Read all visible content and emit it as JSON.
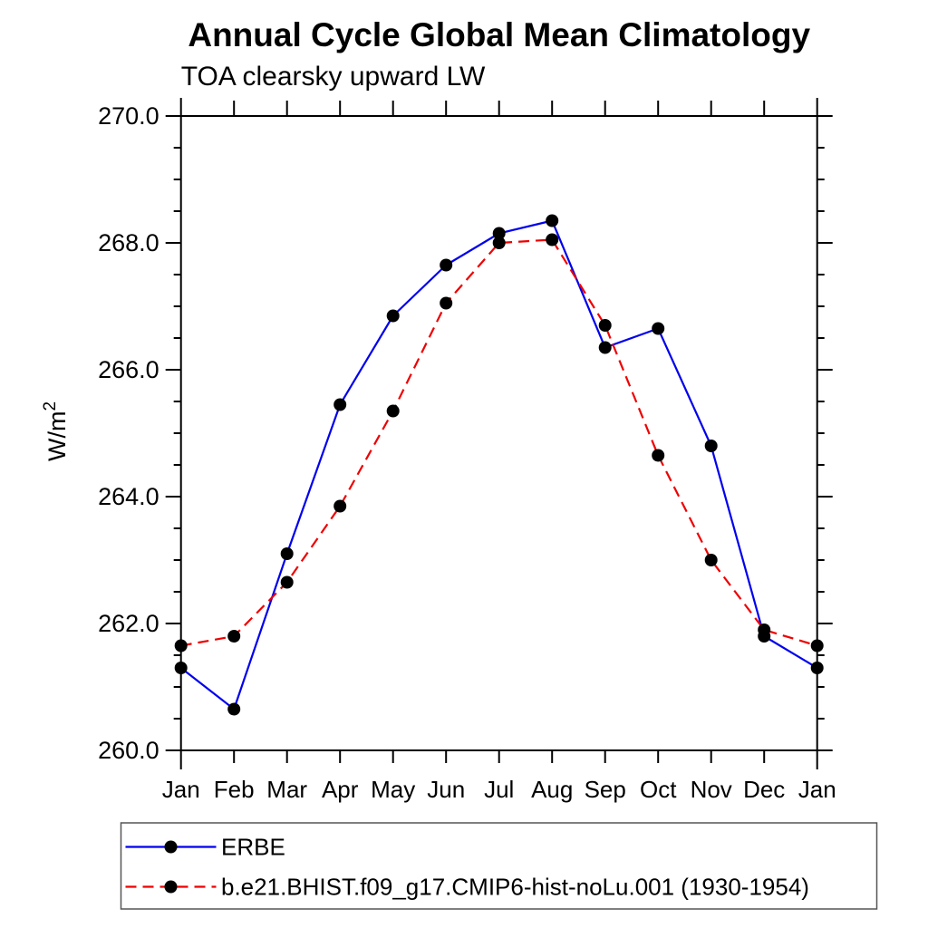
{
  "page": {
    "background": "#ffffff",
    "axis_color": "#000000",
    "legend_border_color": "#555555"
  },
  "chart_data": {
    "type": "line",
    "title": "Annual Cycle Global Mean Climatology",
    "subtitle": "TOA clearsky upward LW",
    "ylabel": "W/m²",
    "ylabel_base": "W/m",
    "ylabel_exp": "2",
    "x_axis": {
      "categories": [
        "Jan",
        "Feb",
        "Mar",
        "Apr",
        "May",
        "Jun",
        "Jul",
        "Aug",
        "Sep",
        "Oct",
        "Nov",
        "Dec",
        "Jan"
      ]
    },
    "y_axis": {
      "range": [
        260.0,
        270.0
      ],
      "tick_values": [
        260,
        262,
        264,
        266,
        268,
        270
      ],
      "tick_labels": [
        "260.0",
        "262.0",
        "264.0",
        "266.0",
        "268.0",
        "270.0"
      ],
      "minor_step": 0.5
    },
    "grid": "off",
    "legend_position": "bottom-left-box",
    "marker_color": "#000000",
    "series": [
      {
        "name": "ERBE",
        "color": "#0000ee",
        "style": "solid",
        "marker": "circle",
        "values": [
          261.3,
          260.65,
          263.1,
          265.45,
          266.85,
          267.65,
          268.15,
          268.35,
          266.35,
          266.65,
          264.8,
          261.8,
          261.3
        ]
      },
      {
        "name": "b.e21.BHIST.f09_g17.CMIP6-hist-noLu.001 (1930-1954)",
        "color": "#ee0000",
        "style": "dashed",
        "marker": "circle",
        "values": [
          261.65,
          261.8,
          262.65,
          263.85,
          265.35,
          267.05,
          268.0,
          268.05,
          266.7,
          264.65,
          263.0,
          261.9,
          261.65
        ]
      }
    ]
  }
}
